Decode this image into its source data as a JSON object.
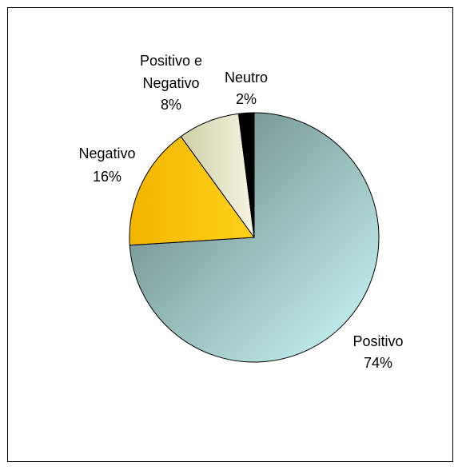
{
  "chart_data": {
    "type": "pie",
    "title": "",
    "slices": [
      {
        "label": "Positivo",
        "value": 74,
        "value_label": "74%",
        "color_start": "#5f7b78",
        "color_end": "#ccfafa"
      },
      {
        "label": "Negativo",
        "value": 16,
        "value_label": "16%",
        "color_start": "#f2b500",
        "color_end": "#ffd21a"
      },
      {
        "label": "Positivo e Negativo",
        "label_lines": [
          "Positivo e",
          "Negativo"
        ],
        "value": 8,
        "value_label": "8%",
        "color_start": "#cfcfa6",
        "color_end": "#f5f5e3"
      },
      {
        "label": "Neutro",
        "value": 2,
        "value_label": "2%",
        "color_start": "#000000",
        "color_end": "#000000"
      }
    ],
    "start_angle_deg": 0,
    "direction": "clockwise",
    "legend": "none"
  }
}
